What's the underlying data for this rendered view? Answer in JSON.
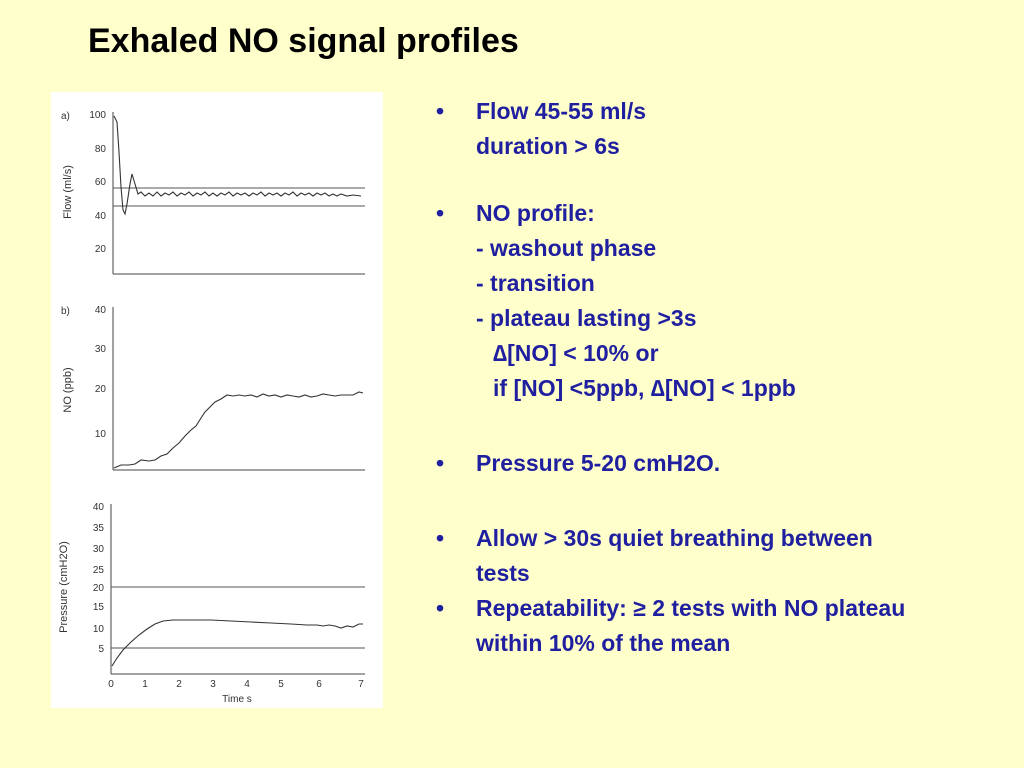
{
  "title": "Exhaled NO signal profiles",
  "figure": {
    "panels": [
      {
        "label": "a)",
        "ylabel": "Flow (ml/s)",
        "yticks": [
          "100",
          "80",
          "60",
          "40",
          "20"
        ]
      },
      {
        "label": "b)",
        "ylabel": "NO (ppb)",
        "yticks": [
          "40",
          "30",
          "20",
          "10"
        ]
      },
      {
        "label": "",
        "ylabel": "Pressure (cmH2O)",
        "yticks": [
          "40",
          "35",
          "30",
          "25",
          "20",
          "15",
          "10",
          "5"
        ]
      }
    ],
    "xticks": [
      "0",
      "1",
      "2",
      "3",
      "4",
      "5",
      "6",
      "7"
    ],
    "xlabel": "Time  s"
  },
  "bullets": [
    {
      "lines": [
        "Flow 45-55 ml/s",
        "duration > 6s"
      ]
    },
    {
      "lines": [
        "NO profile:",
        "- washout phase",
        "- transition",
        "- plateau lasting >3s",
        "∆[NO] < 10% or",
        "if [NO] <5ppb, ∆[NO] < 1ppb"
      ]
    },
    {
      "lines": [
        "Pressure 5-20 cmH2O."
      ]
    },
    {
      "lines": [
        "Allow > 30s quiet breathing between",
        "tests"
      ]
    },
    {
      "lines": [
        "Repeatability: ≥ 2 tests with NO plateau",
        "within 10% of the mean"
      ]
    }
  ],
  "bullet_symbol": "•",
  "colors": {
    "background": "#ffffcc",
    "bullet_text": "#1f1fa0",
    "title": "#000000"
  }
}
